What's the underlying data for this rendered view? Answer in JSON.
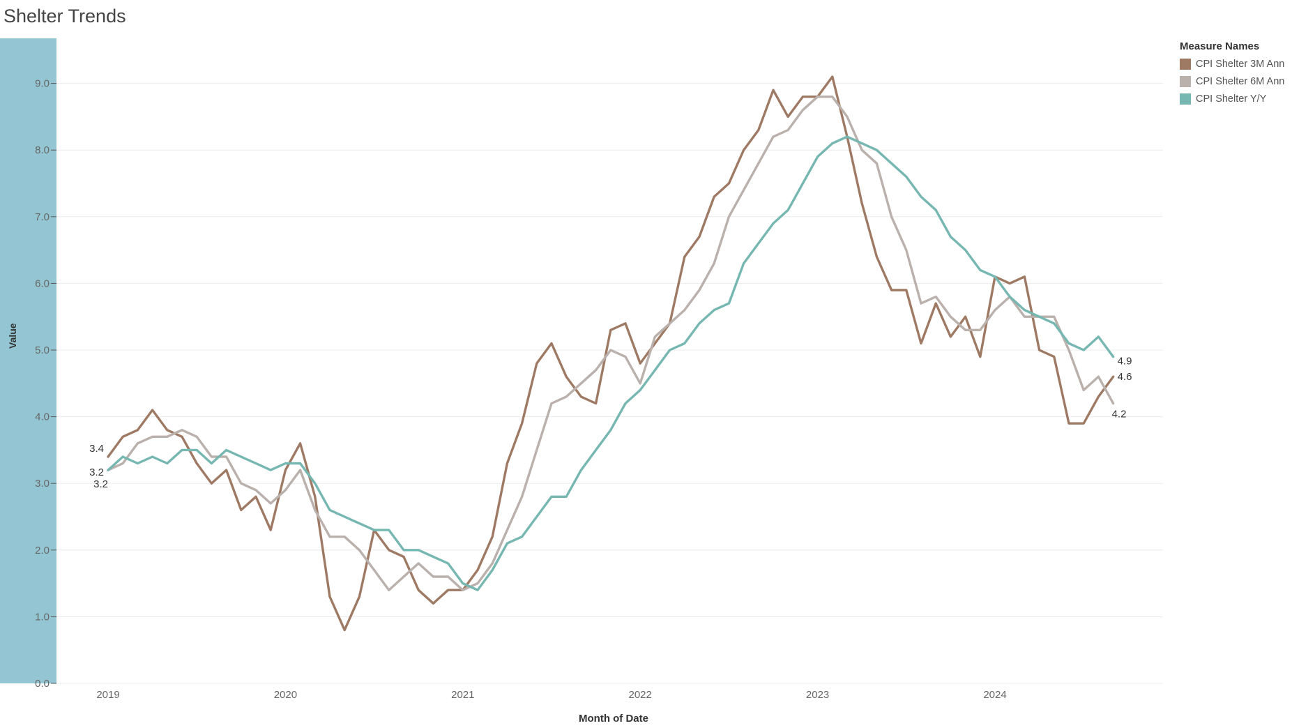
{
  "title": "Shelter Trends",
  "legend": {
    "title": "Measure Names",
    "items": [
      {
        "label": "CPI Shelter 3M Ann",
        "color": "#9e7a65"
      },
      {
        "label": "CPI Shelter 6M Ann",
        "color": "#bab0ac"
      },
      {
        "label": "CPI Shelter Y/Y",
        "color": "#76b7b2"
      }
    ]
  },
  "chart_data": {
    "type": "line",
    "title": "Shelter Trends",
    "xlabel": "Month of Date",
    "ylabel": "Value",
    "x_ticks": [
      "2019",
      "2020",
      "2021",
      "2022",
      "2023",
      "2024"
    ],
    "y_ticks": [
      "0.0",
      "1.0",
      "2.0",
      "3.0",
      "4.0",
      "5.0",
      "6.0",
      "7.0",
      "8.0",
      "9.0"
    ],
    "ylim": [
      0,
      9.0
    ],
    "x_start": "2019-01",
    "x_end": "2024-08",
    "grid": true,
    "legend_position": "right",
    "series": [
      {
        "name": "CPI Shelter 3M Ann",
        "color": "#9e7a65",
        "start_label": "3.4",
        "end_label": "4.6",
        "values": [
          3.4,
          3.7,
          3.8,
          4.1,
          3.8,
          3.7,
          3.3,
          3.0,
          3.2,
          2.6,
          2.8,
          2.3,
          3.2,
          3.6,
          2.8,
          1.3,
          0.8,
          1.3,
          2.3,
          2.0,
          1.9,
          1.4,
          1.2,
          1.4,
          1.4,
          1.7,
          2.2,
          3.3,
          3.9,
          4.8,
          5.1,
          4.6,
          4.3,
          4.2,
          5.3,
          5.4,
          4.8,
          5.1,
          5.4,
          6.4,
          6.7,
          7.3,
          7.5,
          8.0,
          8.3,
          8.9,
          8.5,
          8.8,
          8.8,
          9.1,
          8.2,
          7.2,
          6.4,
          5.9,
          5.9,
          5.1,
          5.7,
          5.2,
          5.5,
          4.9,
          6.1,
          6.0,
          6.1,
          5.0,
          4.9,
          3.9,
          3.9,
          4.3,
          4.6
        ]
      },
      {
        "name": "CPI Shelter 6M Ann",
        "color": "#bab0ac",
        "start_label": "3.2",
        "end_label": "4.2",
        "values": [
          3.2,
          3.3,
          3.6,
          3.7,
          3.7,
          3.8,
          3.7,
          3.4,
          3.4,
          3.0,
          2.9,
          2.7,
          2.9,
          3.2,
          2.6,
          2.2,
          2.2,
          2.0,
          1.7,
          1.4,
          1.6,
          1.8,
          1.6,
          1.6,
          1.4,
          1.5,
          1.8,
          2.3,
          2.8,
          3.5,
          4.2,
          4.3,
          4.5,
          4.7,
          5.0,
          4.9,
          4.5,
          5.2,
          5.4,
          5.6,
          5.9,
          6.3,
          7.0,
          7.4,
          7.8,
          8.2,
          8.3,
          8.6,
          8.8,
          8.8,
          8.5,
          8.0,
          7.8,
          7.0,
          6.5,
          5.7,
          5.8,
          5.5,
          5.3,
          5.3,
          5.6,
          5.8,
          5.5,
          5.5,
          5.5,
          5.0,
          4.4,
          4.6,
          4.2
        ]
      },
      {
        "name": "CPI Shelter Y/Y",
        "color": "#76b7b2",
        "start_label": "3.2",
        "end_label": "4.9",
        "values": [
          3.2,
          3.4,
          3.3,
          3.4,
          3.3,
          3.5,
          3.5,
          3.3,
          3.5,
          3.4,
          3.3,
          3.2,
          3.3,
          3.3,
          3.0,
          2.6,
          2.5,
          2.4,
          2.3,
          2.3,
          2.0,
          2.0,
          1.9,
          1.8,
          1.5,
          1.4,
          1.7,
          2.1,
          2.2,
          2.5,
          2.8,
          2.8,
          3.2,
          3.5,
          3.8,
          4.2,
          4.4,
          4.7,
          5.0,
          5.1,
          5.4,
          5.6,
          5.7,
          6.3,
          6.6,
          6.9,
          7.1,
          7.5,
          7.9,
          8.1,
          8.2,
          8.1,
          8.0,
          7.8,
          7.6,
          7.3,
          7.1,
          6.7,
          6.5,
          6.2,
          6.1,
          5.8,
          5.6,
          5.5,
          5.4,
          5.1,
          5.0,
          5.2,
          4.9
        ]
      }
    ]
  }
}
